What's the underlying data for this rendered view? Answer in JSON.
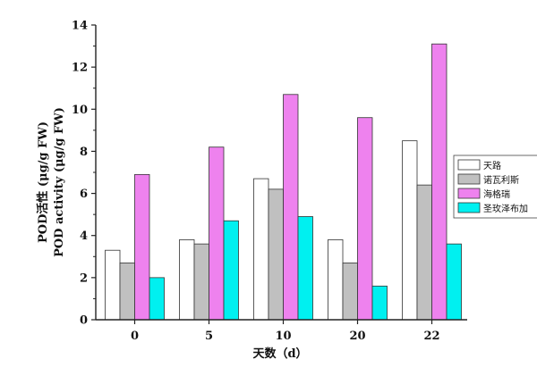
{
  "chart_data": {
    "type": "bar",
    "categories": [
      "0",
      "5",
      "10",
      "20",
      "22"
    ],
    "series": [
      {
        "name": "天路",
        "color": "#ffffff",
        "values": [
          3.3,
          3.8,
          6.7,
          3.8,
          8.5
        ]
      },
      {
        "name": "诺瓦利斯",
        "color": "#c0c0c0",
        "values": [
          2.7,
          3.6,
          6.2,
          2.7,
          6.4
        ]
      },
      {
        "name": "海格瑞",
        "color": "#ee82ee",
        "values": [
          6.9,
          8.2,
          10.7,
          9.6,
          13.1
        ]
      },
      {
        "name": "圣玫泽布加",
        "color": "#00f0f0",
        "values": [
          2.0,
          4.7,
          4.9,
          1.6,
          3.6
        ]
      }
    ],
    "xlabel": "天数（d）",
    "ylabel": [
      "POD活性 (μg/g FW)",
      "POD activity (μg/g FW)"
    ],
    "ylim": [
      0,
      14
    ],
    "yticks": [
      0,
      2,
      4,
      6,
      8,
      10,
      12,
      14
    ],
    "grid": false,
    "legend_position": "right"
  }
}
